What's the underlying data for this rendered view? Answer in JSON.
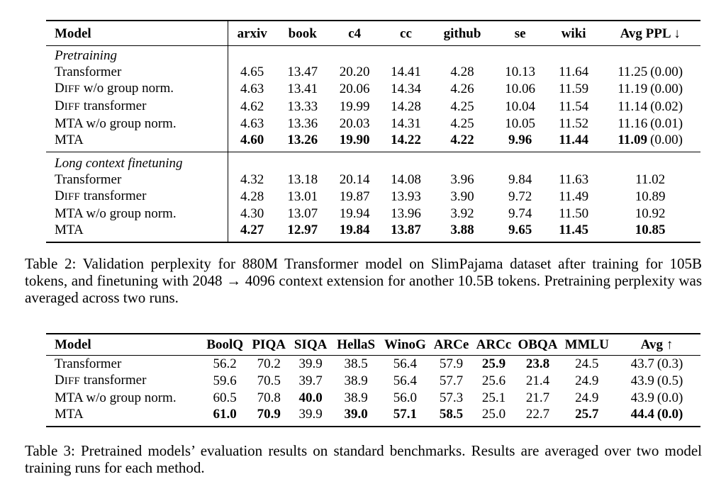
{
  "page": {
    "background_color": "#ffffff",
    "text_color": "#000000"
  },
  "table2": {
    "columns": [
      "Model",
      "arxiv",
      "book",
      "c4",
      "cc",
      "github",
      "se",
      "wiki",
      "Avg PPL ↓"
    ],
    "caption": "Table 2: Validation perplexity for 880M Transformer model on SlimPajama dataset after training for 105B tokens, and finetuning with 2048 → 4096 context extension for another 10.5B tokens. Pretraining perplexity was averaged across two runs.",
    "sections": [
      {
        "label": "Pretraining",
        "rows": [
          {
            "model": "Transformer",
            "cells": [
              {
                "t": "4.65"
              },
              {
                "t": "13.47"
              },
              {
                "t": "20.20"
              },
              {
                "t": "14.41"
              },
              {
                "t": "4.28"
              },
              {
                "t": "10.13"
              },
              {
                "t": "11.64"
              },
              {
                "t": "11.25",
                "note": "(0.00)"
              }
            ]
          },
          {
            "model": "DIFF w/o group norm.",
            "cells": [
              {
                "t": "4.63"
              },
              {
                "t": "13.41"
              },
              {
                "t": "20.06"
              },
              {
                "t": "14.34"
              },
              {
                "t": "4.26"
              },
              {
                "t": "10.06"
              },
              {
                "t": "11.59"
              },
              {
                "t": "11.19",
                "note": "(0.00)"
              }
            ]
          },
          {
            "model": "DIFF transformer",
            "cells": [
              {
                "t": "4.62"
              },
              {
                "t": "13.33"
              },
              {
                "t": "19.99"
              },
              {
                "t": "14.28"
              },
              {
                "t": "4.25"
              },
              {
                "t": "10.04"
              },
              {
                "t": "11.54"
              },
              {
                "t": "11.14",
                "note": "(0.02)"
              }
            ]
          },
          {
            "model": "MTA w/o group norm.",
            "cells": [
              {
                "t": "4.63"
              },
              {
                "t": "13.36"
              },
              {
                "t": "20.03"
              },
              {
                "t": "14.31"
              },
              {
                "t": "4.25"
              },
              {
                "t": "10.05"
              },
              {
                "t": "11.52"
              },
              {
                "t": "11.16",
                "note": "(0.01)"
              }
            ]
          },
          {
            "model": "MTA",
            "cells": [
              {
                "t": "4.60",
                "b": true
              },
              {
                "t": "13.26",
                "b": true
              },
              {
                "t": "19.90",
                "b": true
              },
              {
                "t": "14.22",
                "b": true
              },
              {
                "t": "4.22",
                "b": true
              },
              {
                "t": "9.96",
                "b": true
              },
              {
                "t": "11.44",
                "b": true
              },
              {
                "t": "11.09",
                "b": true,
                "note": "(0.00)"
              }
            ]
          }
        ]
      },
      {
        "label": "Long context finetuning",
        "rows": [
          {
            "model": "Transformer",
            "cells": [
              {
                "t": "4.32"
              },
              {
                "t": "13.18"
              },
              {
                "t": "20.14"
              },
              {
                "t": "14.08"
              },
              {
                "t": "3.96"
              },
              {
                "t": "9.84"
              },
              {
                "t": "11.63"
              },
              {
                "t": "11.02"
              }
            ]
          },
          {
            "model": "DIFF transformer",
            "cells": [
              {
                "t": "4.28"
              },
              {
                "t": "13.01"
              },
              {
                "t": "19.87"
              },
              {
                "t": "13.93"
              },
              {
                "t": "3.90"
              },
              {
                "t": "9.72"
              },
              {
                "t": "11.49"
              },
              {
                "t": "10.89"
              }
            ]
          },
          {
            "model": "MTA w/o group norm.",
            "cells": [
              {
                "t": "4.30"
              },
              {
                "t": "13.07"
              },
              {
                "t": "19.94"
              },
              {
                "t": "13.96"
              },
              {
                "t": "3.92"
              },
              {
                "t": "9.74"
              },
              {
                "t": "11.50"
              },
              {
                "t": "10.92"
              }
            ]
          },
          {
            "model": "MTA",
            "cells": [
              {
                "t": "4.27",
                "b": true
              },
              {
                "t": "12.97",
                "b": true
              },
              {
                "t": "19.84",
                "b": true
              },
              {
                "t": "13.87",
                "b": true
              },
              {
                "t": "3.88",
                "b": true
              },
              {
                "t": "9.65",
                "b": true
              },
              {
                "t": "11.45",
                "b": true
              },
              {
                "t": "10.85",
                "b": true
              }
            ]
          }
        ]
      }
    ]
  },
  "table3": {
    "columns": [
      "Model",
      "BoolQ",
      "PIQA",
      "SIQA",
      "HellaS",
      "WinoG",
      "ARCe",
      "ARCc",
      "OBQA",
      "MMLU",
      "Avg ↑"
    ],
    "caption": "Table 3: Pretrained models’ evaluation results on standard benchmarks. Results are averaged over two model training runs for each method.",
    "sections": [
      {
        "label": null,
        "rows": [
          {
            "model": "Transformer",
            "cells": [
              {
                "t": "56.2"
              },
              {
                "t": "70.2"
              },
              {
                "t": "39.9"
              },
              {
                "t": "38.5"
              },
              {
                "t": "56.4"
              },
              {
                "t": "57.9"
              },
              {
                "t": "25.9",
                "b": true
              },
              {
                "t": "23.8",
                "b": true
              },
              {
                "t": "24.5"
              },
              {
                "t": "43.7",
                "note": "(0.3)"
              }
            ]
          },
          {
            "model": "DIFF transformer",
            "cells": [
              {
                "t": "59.6"
              },
              {
                "t": "70.5"
              },
              {
                "t": "39.7"
              },
              {
                "t": "38.9"
              },
              {
                "t": "56.4"
              },
              {
                "t": "57.7"
              },
              {
                "t": "25.6"
              },
              {
                "t": "21.4"
              },
              {
                "t": "24.9"
              },
              {
                "t": "43.9",
                "note": "(0.5)"
              }
            ]
          },
          {
            "model": "MTA w/o group norm.",
            "cells": [
              {
                "t": "60.5"
              },
              {
                "t": "70.8"
              },
              {
                "t": "40.0",
                "b": true
              },
              {
                "t": "38.9"
              },
              {
                "t": "56.0"
              },
              {
                "t": "57.3"
              },
              {
                "t": "25.1"
              },
              {
                "t": "21.7"
              },
              {
                "t": "24.9"
              },
              {
                "t": "43.9",
                "note": "(0.0)"
              }
            ]
          },
          {
            "model": "MTA",
            "cells": [
              {
                "t": "61.0",
                "b": true
              },
              {
                "t": "70.9",
                "b": true
              },
              {
                "t": "39.9"
              },
              {
                "t": "39.0",
                "b": true
              },
              {
                "t": "57.1",
                "b": true
              },
              {
                "t": "58.5",
                "b": true
              },
              {
                "t": "25.0"
              },
              {
                "t": "22.7"
              },
              {
                "t": "25.7",
                "b": true
              },
              {
                "t": "44.4",
                "b": true,
                "note": "(0.0)",
                "nb": true
              }
            ]
          }
        ]
      }
    ]
  }
}
